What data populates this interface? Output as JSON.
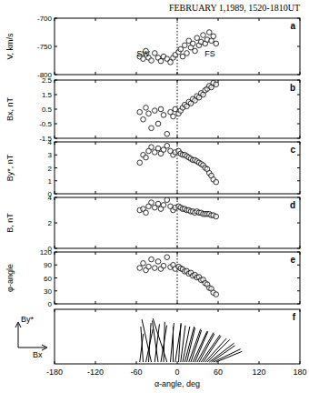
{
  "chart_data": [
    {
      "type": "scatter",
      "panel": "a",
      "title": "FEBRUARY 1,1989, 1520-1810UT",
      "y_label": "V, km/s",
      "marker": "open-circle",
      "color": "#000000",
      "x": [
        -55,
        -50,
        -46,
        -42,
        -38,
        -33,
        -28,
        -24,
        -20,
        -15,
        -10,
        -6,
        -3,
        2,
        5,
        8,
        11,
        14,
        17,
        20,
        23,
        26,
        29,
        32,
        35,
        38,
        41,
        44,
        47,
        50,
        53,
        57
      ],
      "values": [
        -768,
        -772,
        -758,
        -770,
        -775,
        -762,
        -770,
        -776,
        -768,
        -772,
        -778,
        -770,
        -765,
        -760,
        -755,
        -768,
        -748,
        -762,
        -740,
        -752,
        -745,
        -758,
        -735,
        -748,
        -742,
        -730,
        -745,
        -738,
        -725,
        -740,
        -732,
        -745
      ],
      "xlim": [
        -180,
        180
      ],
      "xticks": [
        -180,
        -120,
        -60,
        0,
        60,
        120,
        180
      ],
      "ylim": [
        -800,
        -700
      ],
      "yticks": [
        -800,
        -750,
        -700
      ],
      "tick_labels": "y",
      "annotations": [
        {
          "text": "SW",
          "x": -50,
          "y": -763
        },
        {
          "text": "FS",
          "x": 48,
          "y": -763
        },
        {
          "x": 0,
          "line_style": "dotted"
        }
      ]
    },
    {
      "type": "scatter",
      "panel": "b",
      "y_label": "Bx, nT",
      "marker": "open-circle",
      "color": "#000000",
      "x": [
        -55,
        -50,
        -46,
        -42,
        -38,
        -33,
        -28,
        -24,
        -20,
        -15,
        -10,
        -6,
        -3,
        2,
        5,
        8,
        11,
        14,
        17,
        20,
        23,
        26,
        29,
        32,
        35,
        38,
        41,
        44,
        47,
        50,
        53,
        57
      ],
      "values": [
        0.3,
        -0.2,
        0.6,
        0.2,
        -0.8,
        0.4,
        -0.5,
        0.5,
        0.1,
        -1.2,
        0.3,
        0.0,
        0.5,
        0.2,
        0.4,
        0.6,
        0.8,
        0.7,
        1.0,
        0.9,
        1.2,
        1.1,
        1.4,
        1.3,
        1.6,
        1.5,
        1.8,
        1.9,
        2.1,
        2.0,
        2.3,
        2.2
      ],
      "xlim": [
        -180,
        180
      ],
      "xticks": [
        -180,
        -120,
        -60,
        0,
        60,
        120,
        180
      ],
      "ylim": [
        -1.5,
        2.5
      ],
      "yticks": [
        -1.5,
        -0.5,
        0.5,
        1.5,
        2.5
      ],
      "tick_labels": "y",
      "annotations": [
        {
          "x": 0,
          "line_style": "dotted"
        }
      ]
    },
    {
      "type": "scatter",
      "panel": "c",
      "y_label": "By*, nT",
      "marker": "open-circle",
      "color": "#000000",
      "x": [
        -55,
        -50,
        -46,
        -42,
        -38,
        -33,
        -28,
        -24,
        -20,
        -15,
        -10,
        -6,
        -3,
        2,
        5,
        8,
        11,
        14,
        17,
        20,
        23,
        26,
        29,
        32,
        35,
        38,
        41,
        44,
        47,
        50,
        53,
        57
      ],
      "values": [
        2.4,
        3.0,
        2.8,
        3.3,
        3.6,
        3.2,
        3.5,
        3.1,
        3.4,
        3.7,
        3.3,
        3.0,
        3.2,
        3.3,
        3.1,
        3.0,
        3.0,
        2.9,
        2.8,
        2.7,
        2.6,
        2.6,
        2.5,
        2.4,
        2.3,
        2.2,
        2.0,
        1.9,
        1.6,
        1.4,
        1.1,
        0.9
      ],
      "xlim": [
        -180,
        180
      ],
      "xticks": [
        -180,
        -120,
        -60,
        0,
        60,
        120,
        180
      ],
      "ylim": [
        0,
        4
      ],
      "yticks": [
        0,
        1,
        2,
        3,
        4
      ],
      "tick_labels": "y",
      "annotations": [
        {
          "x": 0,
          "line_style": "dotted"
        }
      ]
    },
    {
      "type": "scatter",
      "panel": "d",
      "y_label": "B, nT",
      "marker": "open-circle",
      "color": "#000000",
      "x": [
        -55,
        -50,
        -46,
        -42,
        -38,
        -33,
        -28,
        -24,
        -20,
        -15,
        -10,
        -6,
        -3,
        2,
        5,
        8,
        11,
        14,
        17,
        20,
        23,
        26,
        29,
        32,
        35,
        38,
        41,
        44,
        47,
        50,
        53,
        57
      ],
      "values": [
        3.0,
        3.1,
        2.8,
        3.3,
        3.6,
        3.2,
        3.5,
        3.1,
        3.4,
        3.8,
        3.3,
        3.0,
        3.2,
        3.3,
        3.2,
        3.1,
        3.1,
        3.0,
        3.0,
        2.9,
        2.9,
        2.8,
        2.9,
        2.8,
        2.8,
        2.7,
        2.7,
        2.7,
        2.7,
        2.6,
        2.6,
        2.5
      ],
      "xlim": [
        -180,
        180
      ],
      "xticks": [
        -180,
        -120,
        -60,
        0,
        60,
        120,
        180
      ],
      "ylim": [
        0,
        4
      ],
      "yticks": [
        0,
        2,
        4
      ],
      "tick_labels": "y",
      "annotations": [
        {
          "x": 0,
          "line_style": "dotted"
        }
      ]
    },
    {
      "type": "scatter",
      "panel": "e",
      "y_label": "φ-angle",
      "marker": "open-circle",
      "color": "#000000",
      "x": [
        -55,
        -50,
        -46,
        -42,
        -38,
        -33,
        -28,
        -24,
        -20,
        -15,
        -10,
        -6,
        -3,
        2,
        5,
        8,
        11,
        14,
        17,
        20,
        23,
        26,
        29,
        32,
        35,
        38,
        41,
        44,
        47,
        50,
        53,
        57
      ],
      "values": [
        83,
        94,
        78,
        86,
        103,
        83,
        98,
        81,
        88,
        108,
        85,
        90,
        81,
        86,
        82,
        80,
        75,
        76,
        70,
        72,
        65,
        67,
        61,
        62,
        55,
        56,
        48,
        45,
        37,
        35,
        26,
        22
      ],
      "xlim": [
        -180,
        180
      ],
      "xticks": [
        -180,
        -120,
        -60,
        0,
        60,
        120,
        180
      ],
      "ylim": [
        0,
        120
      ],
      "yticks": [
        0,
        30,
        60,
        90,
        120
      ],
      "tick_labels": "y",
      "annotations": [
        {
          "x": 0,
          "line_style": "dotted"
        }
      ]
    },
    {
      "type": "vector",
      "panel": "f",
      "x_label": "α-angle, deg",
      "u_label": "Bx",
      "v_label": "By*",
      "color": "#000000",
      "x": [
        -55,
        -50,
        -46,
        -42,
        -38,
        -33,
        -28,
        -24,
        -20,
        -15,
        -10,
        -6,
        -3,
        2,
        5,
        8,
        11,
        14,
        17,
        20,
        23,
        26,
        29,
        32,
        35,
        38,
        41,
        44,
        47,
        50,
        53,
        57
      ],
      "u": [
        0.3,
        -0.2,
        0.6,
        0.2,
        -0.8,
        0.4,
        -0.5,
        0.5,
        0.1,
        -1.2,
        0.3,
        0.0,
        0.5,
        0.2,
        0.4,
        0.6,
        0.8,
        0.7,
        1.0,
        0.9,
        1.2,
        1.1,
        1.4,
        1.3,
        1.6,
        1.5,
        1.8,
        1.9,
        2.1,
        2.0,
        2.3,
        2.2
      ],
      "v": [
        2.4,
        3.0,
        2.8,
        3.3,
        3.6,
        3.2,
        3.5,
        3.1,
        3.4,
        3.7,
        3.3,
        3.0,
        3.2,
        3.3,
        3.1,
        3.0,
        3.0,
        2.9,
        2.8,
        2.7,
        2.6,
        2.6,
        2.5,
        2.4,
        2.3,
        2.2,
        2.0,
        1.9,
        1.6,
        1.4,
        1.1,
        0.9
      ],
      "xlim": [
        -180,
        180
      ],
      "xticks": [
        -180,
        -120,
        -60,
        0,
        60,
        120,
        180
      ],
      "tick_labels": "x"
    }
  ]
}
